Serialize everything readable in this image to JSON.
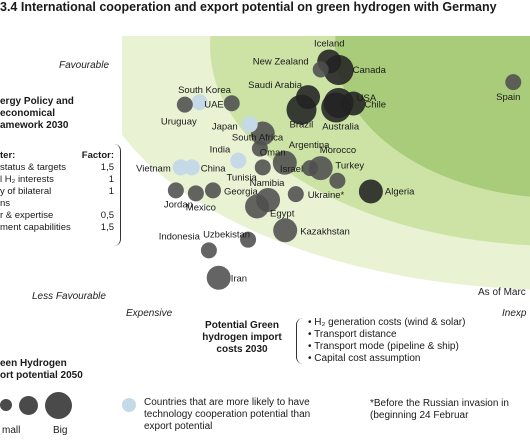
{
  "title": "3.4 International cooperation and export potential on green hydrogen with Germany",
  "axis": {
    "y_top": "Favourable",
    "y_bottom": "Less Favourable",
    "x_left": "Expensive",
    "x_right": "Inexp",
    "as_of": "As of Marc"
  },
  "left_panel": {
    "heading_lines": [
      "ergy Policy and",
      "economical",
      "amework 2030"
    ],
    "col_left": "ter:",
    "col_right": "Factor:",
    "rows": [
      {
        "label": "status & targets",
        "factor": "1,5"
      },
      {
        "label": "l H₂ interests",
        "factor": "1"
      },
      {
        "label": "y of bilateral",
        "factor": "1"
      },
      {
        "label": "ns",
        "factor": ""
      },
      {
        "label": "r & expertise",
        "factor": "0,5"
      },
      {
        "label": "ment capabilities",
        "factor": "1,5"
      }
    ]
  },
  "potential_green": {
    "title_lines": [
      "Potential Green",
      "hydrogen import",
      "costs 2030"
    ],
    "items": [
      "H₂ generation costs (wind & solar)",
      "Transport distance",
      "Transport mode (pipeline & ship)",
      "Capital cost assumption"
    ]
  },
  "green_hydrogen_legend": {
    "heading_lines": [
      "een Hydrogen",
      "ort potential 2050"
    ],
    "small_label": "mall",
    "big_label": "Big"
  },
  "tech_legend_text": "Countries that are more likely to have technology cooperation potential than export potential",
  "note_lines": [
    "*Before the Russian invasion in",
    "(beginning 24 Februar"
  ],
  "colors": {
    "dark_bubble": "#222222",
    "mid_bubble": "#4f4f4f",
    "light_bubble": "#c5d9e6",
    "zone_outer": "#e9f2d3",
    "zone_mid": "#cde3a6",
    "zone_inner": "#a9cc7a"
  },
  "chart_data": {
    "type": "scatter",
    "title": "3.4 International cooperation and export potential on green hydrogen with Germany",
    "xlabel_left": "Expensive",
    "xlabel_right": "Inexp",
    "ylabel_top": "Favourable",
    "ylabel_bottom": "Less Favourable",
    "xlim": [
      0,
      1
    ],
    "ylim": [
      0,
      1
    ],
    "size_legend": "Green Hydrogen export potential 2050 (small to big)",
    "points": [
      {
        "name": "Iceland",
        "x": 0.508,
        "y": 0.905,
        "size": 2,
        "shade": "dark"
      },
      {
        "name": "New Zealand",
        "x": 0.487,
        "y": 0.875,
        "size": 1,
        "shade": "mid"
      },
      {
        "name": "Canada",
        "x": 0.531,
        "y": 0.873,
        "size": 3,
        "shade": "dark"
      },
      {
        "name": "Saudi Arabia",
        "x": 0.456,
        "y": 0.772,
        "size": 2,
        "shade": "dark"
      },
      {
        "name": "USA",
        "x": 0.531,
        "y": 0.75,
        "size": 3,
        "shade": "dark"
      },
      {
        "name": "Chile",
        "x": 0.567,
        "y": 0.748,
        "size": 2,
        "shade": "dark"
      },
      {
        "name": "Australia",
        "x": 0.525,
        "y": 0.733,
        "size": 3,
        "shade": "dark"
      },
      {
        "name": "Brazil",
        "x": 0.44,
        "y": 0.725,
        "size": 3,
        "shade": "dark"
      },
      {
        "name": "South Korea",
        "x": 0.19,
        "y": 0.753,
        "size": 1,
        "shade": "light"
      },
      {
        "name": "UAE",
        "x": 0.269,
        "y": 0.749,
        "size": 1,
        "shade": "mid"
      },
      {
        "name": "Uruguay",
        "x": 0.154,
        "y": 0.744,
        "size": 1,
        "shade": "mid"
      },
      {
        "name": "Japan",
        "x": 0.313,
        "y": 0.67,
        "size": 1,
        "shade": "light"
      },
      {
        "name": "Oman",
        "x": 0.345,
        "y": 0.636,
        "size": 2,
        "shade": "mid"
      },
      {
        "name": "Spain",
        "x": 0.959,
        "y": 0.828,
        "size": 1,
        "shade": "mid"
      },
      {
        "name": "India",
        "x": 0.285,
        "y": 0.535,
        "size": 1,
        "shade": "light"
      },
      {
        "name": "South Africa",
        "x": 0.338,
        "y": 0.58,
        "size": 1,
        "shade": "mid"
      },
      {
        "name": "Vietnam",
        "x": 0.144,
        "y": 0.51,
        "size": 1,
        "shade": "light"
      },
      {
        "name": "China",
        "x": 0.171,
        "y": 0.51,
        "size": 1,
        "shade": "light"
      },
      {
        "name": "Tunisia",
        "x": 0.345,
        "y": 0.51,
        "size": 1,
        "shade": "mid"
      },
      {
        "name": "Argentina",
        "x": 0.399,
        "y": 0.527,
        "size": 2,
        "shade": "mid"
      },
      {
        "name": "Israel",
        "x": 0.461,
        "y": 0.507,
        "size": 1,
        "shade": "mid"
      },
      {
        "name": "Morocco",
        "x": 0.487,
        "y": 0.507,
        "size": 2,
        "shade": "mid"
      },
      {
        "name": "Turkey",
        "x": 0.528,
        "y": 0.46,
        "size": 1,
        "shade": "mid"
      },
      {
        "name": "Algeria",
        "x": 0.61,
        "y": 0.42,
        "size": 2,
        "shade": "dark"
      },
      {
        "name": "Ukraine*",
        "x": 0.426,
        "y": 0.41,
        "size": 1,
        "shade": "mid"
      },
      {
        "name": "Namibia",
        "x": 0.358,
        "y": 0.388,
        "size": 2,
        "shade": "mid"
      },
      {
        "name": "Egypt",
        "x": 0.331,
        "y": 0.364,
        "size": 2,
        "shade": "mid"
      },
      {
        "name": "Georgia",
        "x": 0.223,
        "y": 0.424,
        "size": 1,
        "shade": "mid"
      },
      {
        "name": "Jordan",
        "x": 0.132,
        "y": 0.424,
        "size": 1,
        "shade": "mid"
      },
      {
        "name": "Mexico",
        "x": 0.181,
        "y": 0.413,
        "size": 1,
        "shade": "mid"
      },
      {
        "name": "Indonesia",
        "x": 0.213,
        "y": 0.2,
        "size": 1,
        "shade": "mid"
      },
      {
        "name": "Uzbekistan",
        "x": 0.309,
        "y": 0.24,
        "size": 1,
        "shade": "mid"
      },
      {
        "name": "Kazakhstan",
        "x": 0.4,
        "y": 0.275,
        "size": 2,
        "shade": "mid"
      },
      {
        "name": "Iran",
        "x": 0.237,
        "y": 0.098,
        "size": 2,
        "shade": "mid"
      }
    ]
  }
}
